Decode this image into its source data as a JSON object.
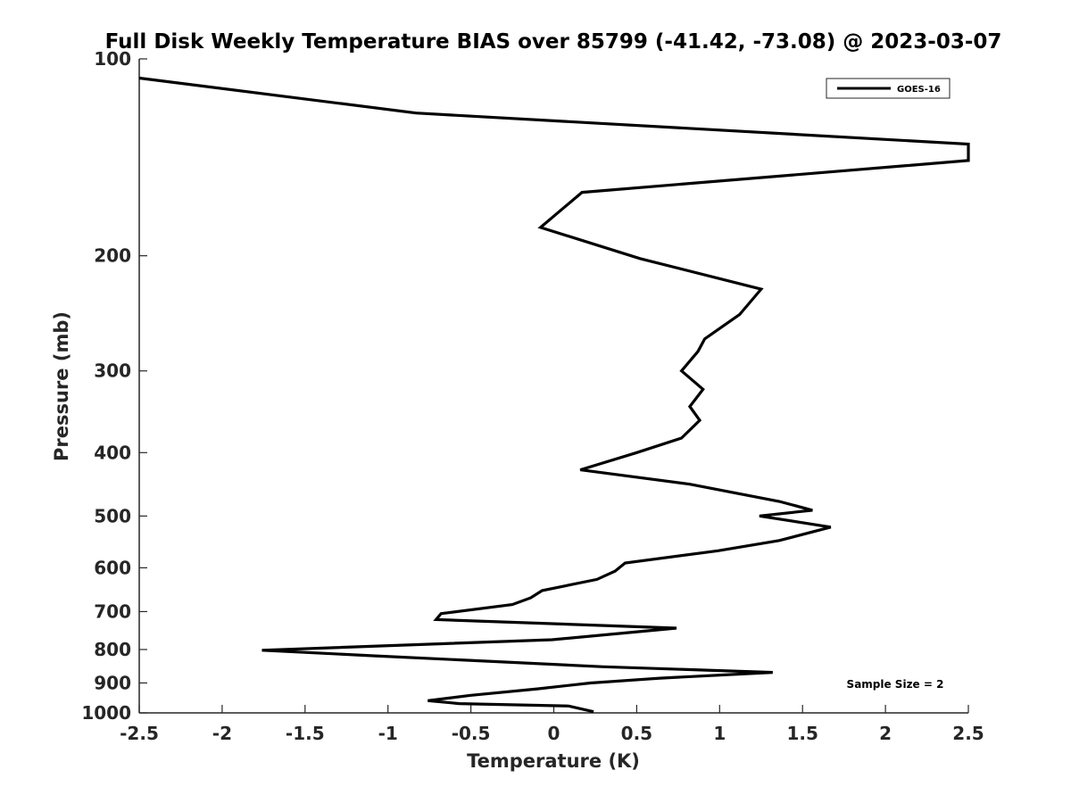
{
  "chart_data": {
    "type": "line",
    "title": "Full Disk Weekly Temperature BIAS over 85799 (-41.42, -73.08) @ 2023-03-07",
    "xlabel": "Temperature (K)",
    "ylabel": "Pressure (mb)",
    "xlim": [
      -2.5,
      2.5
    ],
    "ylim": [
      100,
      1000
    ],
    "yscale": "log",
    "y_reversed": true,
    "grid": false,
    "legend_position": "top-right",
    "xticks": [
      -2.5,
      -2,
      -1.5,
      -1,
      -0.5,
      0,
      0.5,
      1,
      1.5,
      2,
      2.5
    ],
    "xtick_labels": [
      "-2.5",
      "-2",
      "-1.5",
      "-1",
      "-0.5",
      "0",
      "0.5",
      "1",
      "1.5",
      "2",
      "2.5"
    ],
    "yticks": [
      100,
      200,
      300,
      400,
      500,
      600,
      700,
      800,
      900,
      1000
    ],
    "ytick_labels": [
      "100",
      "200",
      "300",
      "400",
      "500",
      "600",
      "700",
      "800",
      "900",
      "1000"
    ],
    "series": [
      {
        "name": "GOES-16",
        "color": "#000000",
        "points": [
          [
            -2.5,
            107
          ],
          [
            -0.83,
            121
          ],
          [
            2.5,
            135
          ],
          [
            2.5,
            143
          ],
          [
            0.17,
            160
          ],
          [
            -0.08,
            181
          ],
          [
            0.52,
            202
          ],
          [
            1.25,
            225
          ],
          [
            1.12,
            246
          ],
          [
            0.91,
            268
          ],
          [
            0.87,
            280
          ],
          [
            0.77,
            300
          ],
          [
            0.9,
            320
          ],
          [
            0.82,
            340
          ],
          [
            0.88,
            357
          ],
          [
            0.77,
            380
          ],
          [
            0.5,
            400
          ],
          [
            0.16,
            425
          ],
          [
            0.82,
            447
          ],
          [
            1.36,
            475
          ],
          [
            1.56,
            490
          ],
          [
            1.24,
            500
          ],
          [
            1.67,
            520
          ],
          [
            1.36,
            545
          ],
          [
            0.99,
            565
          ],
          [
            0.43,
            590
          ],
          [
            0.37,
            607
          ],
          [
            0.26,
            625
          ],
          [
            -0.07,
            650
          ],
          [
            -0.14,
            667
          ],
          [
            -0.25,
            683
          ],
          [
            -0.68,
            705
          ],
          [
            -0.71,
            720
          ],
          [
            0.74,
            742
          ],
          [
            -0.01,
            773
          ],
          [
            -1.76,
            802
          ],
          [
            -1.09,
            818
          ],
          [
            0.3,
            850
          ],
          [
            1.32,
            867
          ],
          [
            0.64,
            885
          ],
          [
            0.22,
            900
          ],
          [
            -0.1,
            919
          ],
          [
            -0.5,
            940
          ],
          [
            -0.76,
            958
          ],
          [
            -0.57,
            968
          ],
          [
            0.09,
            976
          ],
          [
            0.24,
            996
          ]
        ]
      }
    ],
    "annotations": [
      "Sample Size = 2"
    ]
  }
}
